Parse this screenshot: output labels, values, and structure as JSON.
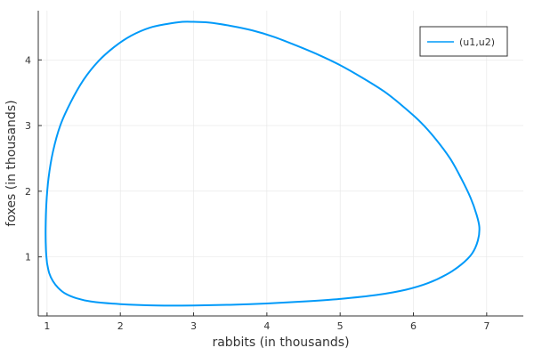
{
  "chart_data": {
    "type": "line",
    "title": "",
    "xlabel": "rabbits (in thousands)",
    "ylabel": "foxes (in thousands)",
    "xlim": [
      0.88,
      7.5
    ],
    "ylim": [
      0.1,
      4.75
    ],
    "xticks": [
      1,
      2,
      3,
      4,
      5,
      6,
      7
    ],
    "yticks": [
      1,
      2,
      3,
      4
    ],
    "grid": true,
    "legend_position": "top-right",
    "series": [
      {
        "name": "(u1,u2)",
        "color": "#009af9",
        "x": [
          1.0,
          0.985,
          0.98,
          0.99,
          1.02,
          1.08,
          1.18,
          1.32,
          1.5,
          1.7,
          1.92,
          2.15,
          2.4,
          2.65,
          2.85,
          3.0,
          3.2,
          3.5,
          3.8,
          4.1,
          4.4,
          4.7,
          5.0,
          5.3,
          5.6,
          5.85,
          6.1,
          6.3,
          6.5,
          6.65,
          6.78,
          6.86,
          6.9,
          6.88,
          6.8,
          6.65,
          6.45,
          6.2,
          5.9,
          5.5,
          5.0,
          4.5,
          4.0,
          3.5,
          3.0,
          2.5,
          2.0,
          1.6,
          1.4,
          1.25,
          1.15,
          1.08,
          1.03,
          1.0
        ],
        "y": [
          0.9,
          1.1,
          1.4,
          1.8,
          2.2,
          2.6,
          3.0,
          3.35,
          3.7,
          3.98,
          4.2,
          4.37,
          4.49,
          4.55,
          4.58,
          4.58,
          4.57,
          4.52,
          4.45,
          4.35,
          4.22,
          4.08,
          3.92,
          3.73,
          3.52,
          3.3,
          3.05,
          2.8,
          2.5,
          2.2,
          1.9,
          1.65,
          1.45,
          1.25,
          1.05,
          0.88,
          0.73,
          0.6,
          0.5,
          0.42,
          0.36,
          0.32,
          0.29,
          0.27,
          0.26,
          0.26,
          0.28,
          0.32,
          0.37,
          0.44,
          0.53,
          0.63,
          0.75,
          0.9
        ]
      }
    ]
  }
}
